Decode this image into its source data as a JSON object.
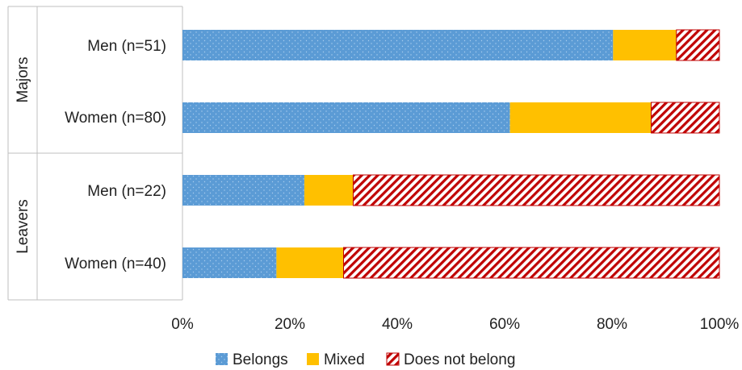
{
  "chart_data": {
    "type": "bar",
    "orientation": "horizontal",
    "stacked": true,
    "groups": [
      {
        "label": "Majors",
        "categories": [
          "Men (n=51)",
          "Women (n=80)"
        ]
      },
      {
        "label": "Leavers",
        "categories": [
          "Men (n=22)",
          "Women (n=40)"
        ]
      }
    ],
    "categories": [
      "Men (n=51)",
      "Women (n=80)",
      "Men (n=22)",
      "Women (n=40)"
    ],
    "series": [
      {
        "name": "Belongs",
        "values": [
          80.2,
          61.0,
          22.7,
          17.5
        ]
      },
      {
        "name": "Mixed",
        "values": [
          11.8,
          26.3,
          9.1,
          12.5
        ]
      },
      {
        "name": "Does not belong",
        "values": [
          8.0,
          12.7,
          68.2,
          70.0
        ]
      }
    ],
    "colors": {
      "Belongs": "#5B9BD5",
      "Mixed": "#FFC000",
      "Does not belong": "#C00000"
    },
    "xlim": [
      0,
      100
    ],
    "x_ticks": [
      "0%",
      "20%",
      "40%",
      "60%",
      "80%",
      "100%"
    ],
    "grid": false,
    "legend_position": "bottom"
  }
}
